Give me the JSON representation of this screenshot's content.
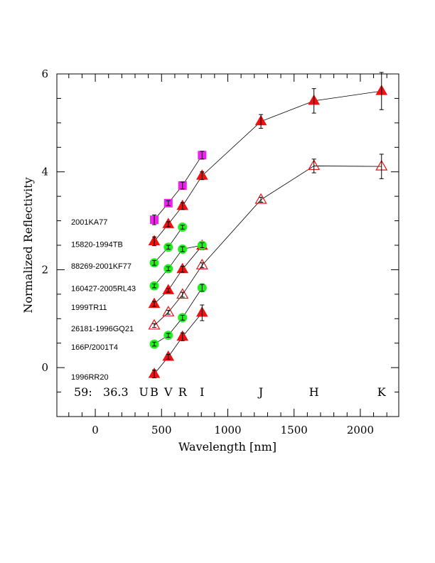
{
  "chart_data": {
    "type": "scatter",
    "xlabel": "Wavelength [nm]",
    "ylabel": "Normalized Reflectivity",
    "xlim": [
      -290,
      2290
    ],
    "ylim": [
      -1.0,
      6.0
    ],
    "x_ticks": [
      0,
      500,
      1000,
      1500,
      2000
    ],
    "y_ticks": [
      0,
      2,
      4,
      6
    ],
    "grid": false,
    "panel_label": "59:   36.3",
    "band_labels": [
      {
        "text": "U",
        "x": 366
      },
      {
        "text": "B",
        "x": 445
      },
      {
        "text": "V",
        "x": 551
      },
      {
        "text": "R",
        "x": 658
      },
      {
        "text": "I",
        "x": 806
      },
      {
        "text": "J",
        "x": 1250
      },
      {
        "text": "H",
        "x": 1650
      },
      {
        "text": "K",
        "x": 2160
      }
    ],
    "series": [
      {
        "name": "1996RR20",
        "marker": "triangle-filled",
        "color": "#ee1111",
        "points": [
          [
            445,
            -0.13,
            0.08
          ],
          [
            551,
            0.22,
            0.05
          ],
          [
            658,
            0.63,
            0.08
          ],
          [
            806,
            1.12,
            0.16
          ]
        ]
      },
      {
        "name": "166P/2001T4",
        "marker": "circle",
        "color": "#22ee22",
        "points": [
          [
            445,
            0.48,
            0.04
          ],
          [
            551,
            0.66,
            0.04
          ],
          [
            658,
            1.02,
            0.05
          ],
          [
            806,
            1.63,
            0.07
          ]
        ]
      },
      {
        "name": "26181-1996GQ21",
        "marker": "triangle-open",
        "color": "#ee1111",
        "points": [
          [
            445,
            0.86,
            0.04
          ],
          [
            551,
            1.13,
            0.04
          ],
          [
            658,
            1.49,
            0.05
          ],
          [
            806,
            2.09,
            0.05
          ],
          [
            1250,
            3.43,
            0.05
          ],
          [
            1650,
            4.12,
            0.14
          ],
          [
            2160,
            4.11,
            0.25
          ]
        ]
      },
      {
        "name": "1999TR11",
        "marker": "triangle-filled",
        "color": "#ee1111",
        "points": [
          [
            445,
            1.3,
            0.05
          ],
          [
            551,
            1.58,
            0.04
          ],
          [
            658,
            2.01,
            0.06
          ],
          [
            806,
            2.49,
            0.08
          ]
        ]
      },
      {
        "name": "160427-2005RL43",
        "marker": "circle",
        "color": "#22ee22",
        "points": [
          [
            445,
            1.67,
            0.04
          ],
          [
            551,
            2.02,
            0.04
          ],
          [
            658,
            2.42,
            0.05
          ],
          [
            806,
            2.5,
            0.05
          ]
        ]
      },
      {
        "name": "88269-2001KF77",
        "marker": "circle",
        "color": "#22ee22",
        "points": [
          [
            445,
            2.14,
            0.05
          ],
          [
            551,
            2.46,
            0.04
          ],
          [
            658,
            2.87,
            0.04
          ]
        ]
      },
      {
        "name": "15820-1994TB",
        "marker": "triangle-filled",
        "color": "#ee1111",
        "points": [
          [
            445,
            2.58,
            0.09
          ],
          [
            551,
            2.93,
            0.05
          ],
          [
            658,
            3.3,
            0.07
          ],
          [
            806,
            3.92,
            0.08
          ],
          [
            1250,
            5.03,
            0.14
          ],
          [
            1650,
            5.45,
            0.25
          ],
          [
            2160,
            5.65,
            0.38
          ]
        ]
      },
      {
        "name": "2001KA77",
        "marker": "square",
        "color": "#ee22ee",
        "points": [
          [
            445,
            3.02,
            0.1
          ],
          [
            551,
            3.36,
            0.05
          ],
          [
            658,
            3.72,
            0.07
          ],
          [
            806,
            4.34,
            0.08
          ]
        ]
      }
    ],
    "name_label_y": {
      "2001KA77": 2.98,
      "15820-1994TB": 2.52,
      "88269-2001KF77": 2.08,
      "160427-2005RL43": 1.62,
      "1999TR11": 1.24,
      "26181-1996GQ21": 0.8,
      "166P/2001T4": 0.42,
      "1996RR20": -0.19
    }
  }
}
